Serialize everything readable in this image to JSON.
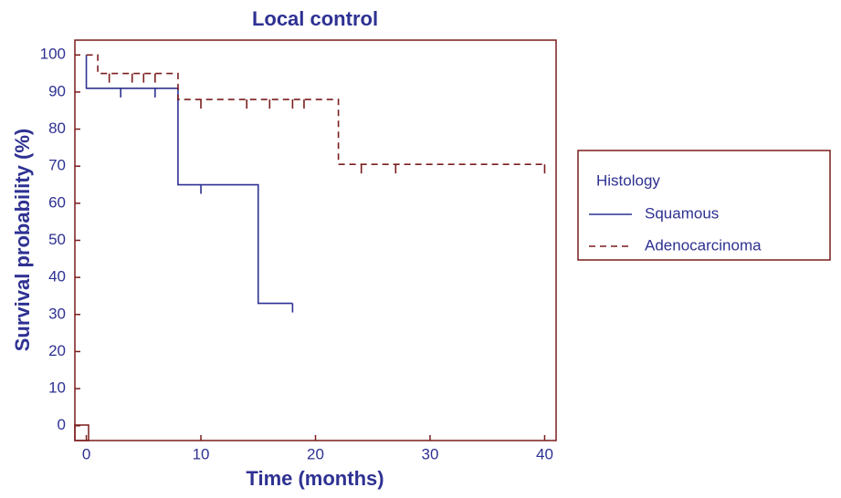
{
  "chart_data": {
    "type": "step",
    "title": "Local control",
    "x_label": "Time (months)",
    "y_label": "Survival probability (%)",
    "xlim": [
      -1,
      41
    ],
    "ylim": [
      -4,
      104
    ],
    "xticks": [
      0,
      10,
      20,
      30,
      40
    ],
    "yticks": [
      0,
      10,
      20,
      30,
      40,
      50,
      60,
      70,
      80,
      90,
      100
    ],
    "legend_title": "Histology",
    "legend_position": "right",
    "series": [
      {
        "name": "Squamous",
        "color": "#2e3192",
        "dash": "solid",
        "x": [
          0,
          0,
          8,
          8,
          15,
          15,
          18
        ],
        "values": [
          100,
          91,
          91,
          65,
          65,
          33,
          33
        ],
        "censored_x": [
          3,
          6,
          10,
          18
        ]
      },
      {
        "name": "Adenocarcinoma",
        "color": "#7b1c1c",
        "dash": "dashed",
        "x": [
          0,
          1,
          1,
          8,
          8,
          22,
          22,
          40
        ],
        "values": [
          100,
          100,
          95,
          95,
          88,
          88,
          70.5,
          70.5
        ],
        "censored_x": [
          2,
          4,
          5,
          6,
          10,
          14,
          16,
          18,
          19,
          24,
          27,
          40
        ]
      }
    ]
  }
}
